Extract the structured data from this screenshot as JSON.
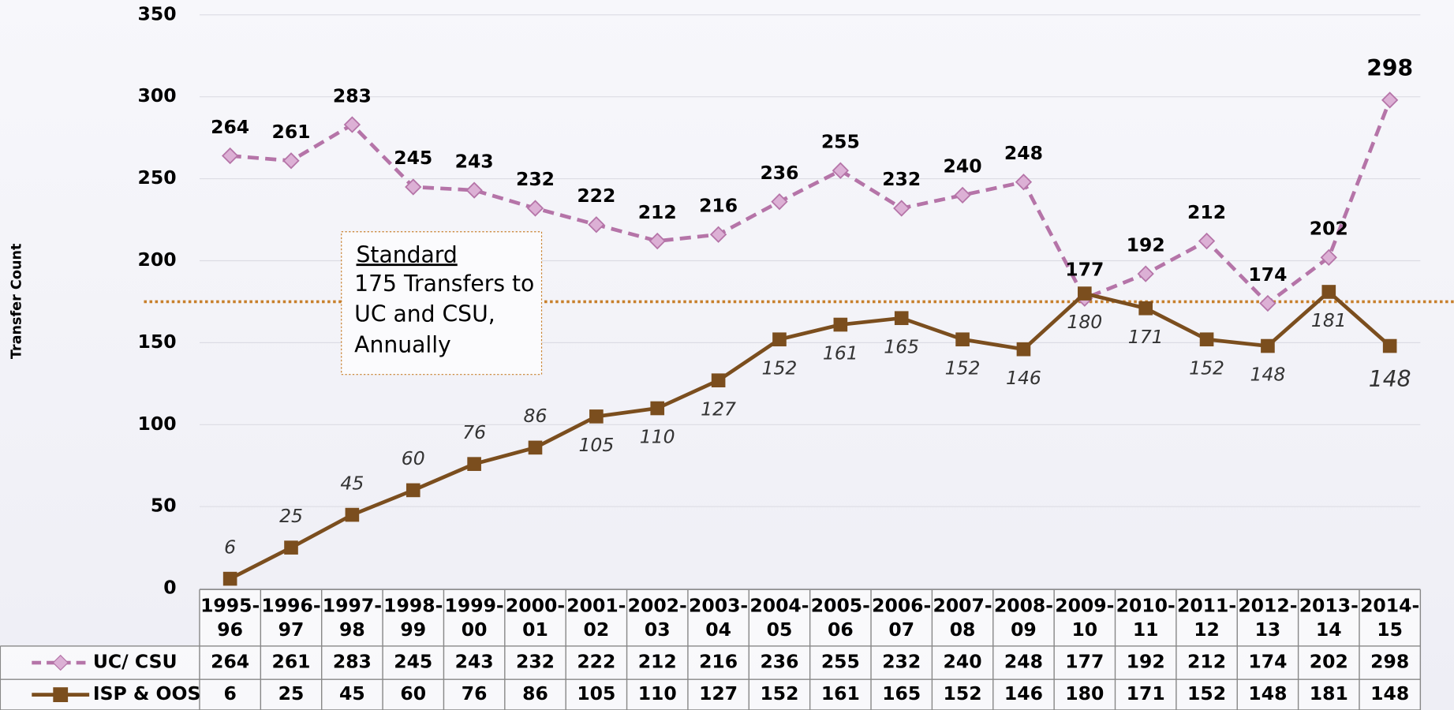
{
  "chart_data": {
    "type": "line",
    "y_label": "Transfer Count",
    "categories": [
      "1995-96",
      "1996-97",
      "1997-98",
      "1998-99",
      "1999-00",
      "2000-01",
      "2001-02",
      "2002-03",
      "2003-04",
      "2004-05",
      "2005-06",
      "2006-07",
      "2007-08",
      "2008-09",
      "2009-10",
      "2010-11",
      "2011-12",
      "2012-13",
      "2013-14",
      "2014-15"
    ],
    "series": [
      {
        "name": "UC/ CSU",
        "color": "#b574a8",
        "values": [
          264,
          261,
          283,
          245,
          243,
          232,
          222,
          212,
          216,
          236,
          255,
          232,
          240,
          248,
          177,
          192,
          212,
          174,
          202,
          298
        ]
      },
      {
        "name": "ISP & OOS",
        "color": "#7b4e1e",
        "values": [
          6,
          25,
          45,
          60,
          76,
          86,
          105,
          110,
          127,
          152,
          161,
          165,
          152,
          146,
          180,
          171,
          152,
          148,
          181,
          148
        ]
      }
    ],
    "ylim": [
      0,
      350
    ],
    "yticks": [
      0,
      50,
      100,
      150,
      200,
      250,
      300,
      350
    ],
    "grid": true,
    "reference_line": {
      "value": 175,
      "color": "#c8802c",
      "title": "Standard",
      "text": "175 Transfers to UC and CSU, Annually"
    }
  }
}
